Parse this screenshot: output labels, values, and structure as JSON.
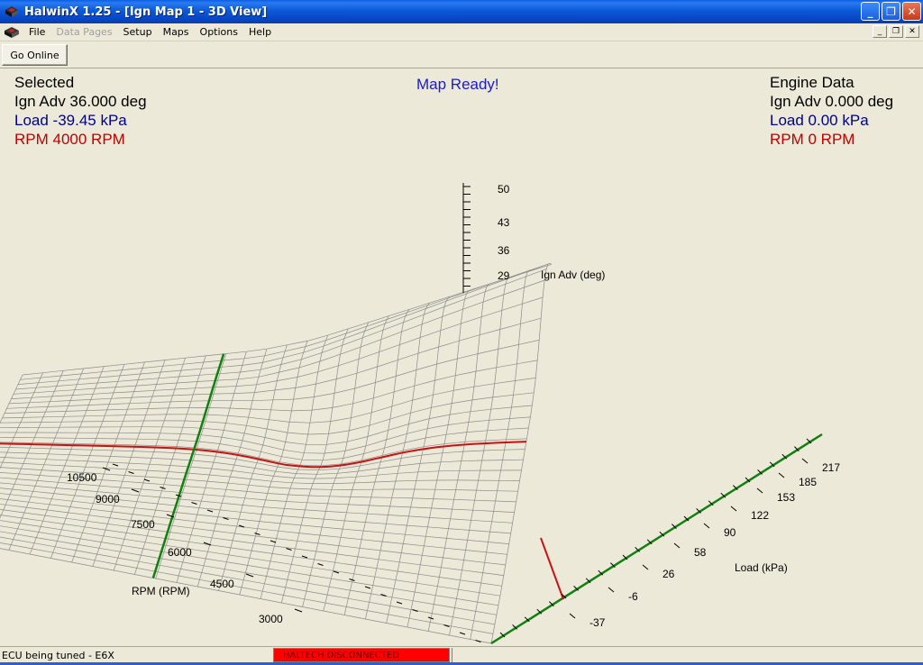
{
  "window": {
    "title": "HalwinX 1.25 - [Ign Map 1 - 3D View]",
    "controls": {
      "minimize": "_",
      "restore": "❐",
      "close": "✕"
    }
  },
  "menu": {
    "items": [
      {
        "label": "File",
        "enabled": true
      },
      {
        "label": "Data Pages",
        "enabled": false
      },
      {
        "label": "Setup",
        "enabled": true
      },
      {
        "label": "Maps",
        "enabled": true
      },
      {
        "label": "Options",
        "enabled": true
      },
      {
        "label": "Help",
        "enabled": true
      }
    ],
    "mdi_controls": {
      "minimize": "_",
      "restore": "❐",
      "close": "✕"
    }
  },
  "toolbar": {
    "go_online_label": "Go Online"
  },
  "selected": {
    "heading": "Selected",
    "ign_adv": "Ign Adv 36.000 deg",
    "load": "Load -39.45 kPa",
    "rpm": "RPM 4000 RPM"
  },
  "engine_data": {
    "heading": "Engine Data",
    "ign_adv": "Ign Adv 0.000 deg",
    "load": "Load 0.00 kPa",
    "rpm": "RPM 0 RPM"
  },
  "map_status": "Map Ready!",
  "plot": {
    "z_axis_label": "Ign Adv (deg)",
    "z_ticks": [
      "50",
      "43",
      "36",
      "29"
    ],
    "rpm_axis_label": "RPM (RPM)",
    "rpm_ticks": [
      "10500",
      "9000",
      "7500",
      "6000",
      "4500",
      "3000"
    ],
    "load_axis_label": "Load (kPa)",
    "load_ticks": [
      "217",
      "185",
      "153",
      "122",
      "90",
      "58",
      "26",
      "-6",
      "-37"
    ],
    "colors": {
      "grid": "#8c8c8c",
      "rpm_trace": "#cc1010",
      "load_trace": "#108010"
    }
  },
  "status": {
    "ecu": "ECU being tuned - E6X",
    "connection": "HALTECH DISCONNECTED",
    "connection_color": "#ff0000"
  }
}
